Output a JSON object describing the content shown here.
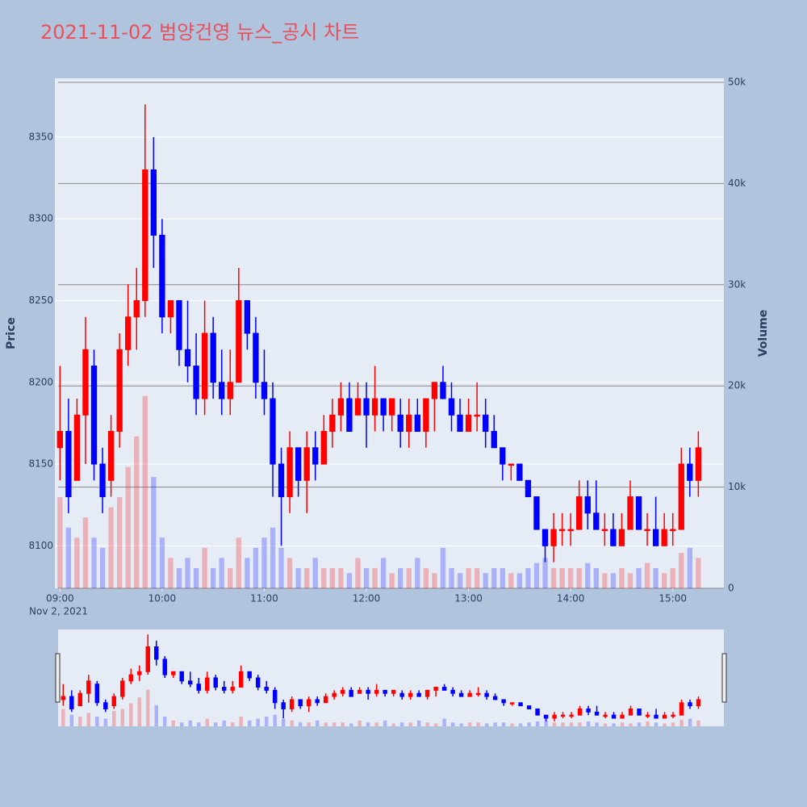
{
  "chart_data": {
    "type": "candlestick",
    "title": "2021-11-02 범양건영 뉴스_공시 차트",
    "y_title": "Price",
    "y2_title": "Volume",
    "x_date_label": "Nov 2, 2021",
    "x": [
      "09:00",
      "09:05",
      "09:10",
      "09:15",
      "09:20",
      "09:25",
      "09:30",
      "09:35",
      "09:40",
      "09:45",
      "09:50",
      "09:55",
      "10:00",
      "10:05",
      "10:10",
      "10:15",
      "10:20",
      "10:25",
      "10:30",
      "10:35",
      "10:40",
      "10:45",
      "10:50",
      "10:55",
      "11:00",
      "11:05",
      "11:10",
      "11:15",
      "11:20",
      "11:25",
      "11:30",
      "11:35",
      "11:40",
      "11:45",
      "11:50",
      "11:55",
      "12:00",
      "12:05",
      "12:10",
      "12:15",
      "12:20",
      "12:25",
      "12:30",
      "12:35",
      "12:40",
      "12:45",
      "12:50",
      "12:55",
      "13:00",
      "13:05",
      "13:10",
      "13:15",
      "13:20",
      "13:25",
      "13:30",
      "13:35",
      "13:40",
      "13:45",
      "13:50",
      "13:55",
      "14:00",
      "14:05",
      "14:10",
      "14:15",
      "14:20",
      "14:25",
      "14:30",
      "14:35",
      "14:40",
      "14:45",
      "14:50",
      "14:55",
      "15:00",
      "15:05",
      "15:10",
      "15:15"
    ],
    "open": [
      8160,
      8170,
      8140,
      8180,
      8210,
      8150,
      8140,
      8170,
      8220,
      8240,
      8250,
      8330,
      8290,
      8240,
      8250,
      8220,
      8210,
      8190,
      8230,
      8200,
      8190,
      8200,
      8250,
      8230,
      8200,
      8190,
      8150,
      8130,
      8160,
      8140,
      8160,
      8150,
      8170,
      8180,
      8190,
      8180,
      8190,
      8180,
      8190,
      8180,
      8180,
      8170,
      8180,
      8170,
      8190,
      8200,
      8190,
      8180,
      8170,
      8180,
      8180,
      8170,
      8160,
      8150,
      8150,
      8140,
      8130,
      8110,
      8100,
      8110,
      8110,
      8110,
      8130,
      8120,
      8110,
      8110,
      8100,
      8110,
      8130,
      8110,
      8110,
      8100,
      8110,
      8110,
      8150,
      8140
    ],
    "high": [
      8210,
      8190,
      8190,
      8240,
      8220,
      8160,
      8180,
      8230,
      8260,
      8270,
      8370,
      8350,
      8300,
      8250,
      8250,
      8250,
      8230,
      8250,
      8240,
      8220,
      8220,
      8270,
      8250,
      8240,
      8220,
      8200,
      8160,
      8170,
      8160,
      8170,
      8170,
      8180,
      8190,
      8200,
      8200,
      8200,
      8200,
      8210,
      8190,
      8190,
      8190,
      8190,
      8190,
      8190,
      8200,
      8210,
      8200,
      8190,
      8190,
      8200,
      8190,
      8180,
      8160,
      8150,
      8150,
      8140,
      8130,
      8110,
      8120,
      8120,
      8120,
      8140,
      8140,
      8140,
      8120,
      8120,
      8120,
      8140,
      8130,
      8120,
      8130,
      8120,
      8120,
      8160,
      8160,
      8170
    ],
    "low": [
      8140,
      8120,
      8140,
      8150,
      8140,
      8120,
      8130,
      8160,
      8210,
      8220,
      8240,
      8270,
      8230,
      8230,
      8210,
      8200,
      8180,
      8180,
      8190,
      8180,
      8180,
      8200,
      8220,
      8190,
      8180,
      8130,
      8100,
      8120,
      8130,
      8120,
      8140,
      8150,
      8160,
      8170,
      8170,
      8180,
      8160,
      8170,
      8170,
      8170,
      8160,
      8160,
      8170,
      8160,
      8170,
      8190,
      8170,
      8170,
      8170,
      8170,
      8160,
      8160,
      8140,
      8140,
      8140,
      8130,
      8110,
      8090,
      8090,
      8100,
      8100,
      8110,
      8110,
      8110,
      8100,
      8100,
      8100,
      8110,
      8110,
      8100,
      8100,
      8100,
      8100,
      8110,
      8130,
      8130
    ],
    "close": [
      8170,
      8130,
      8180,
      8220,
      8150,
      8130,
      8170,
      8220,
      8240,
      8250,
      8330,
      8290,
      8240,
      8250,
      8220,
      8210,
      8190,
      8230,
      8200,
      8190,
      8200,
      8250,
      8230,
      8200,
      8190,
      8150,
      8130,
      8160,
      8140,
      8160,
      8150,
      8170,
      8180,
      8190,
      8170,
      8190,
      8180,
      8190,
      8180,
      8190,
      8170,
      8180,
      8170,
      8190,
      8200,
      8190,
      8180,
      8170,
      8180,
      8180,
      8170,
      8160,
      8150,
      8150,
      8140,
      8130,
      8110,
      8100,
      8110,
      8110,
      8110,
      8130,
      8120,
      8110,
      8110,
      8100,
      8110,
      8130,
      8110,
      8110,
      8100,
      8110,
      8110,
      8150,
      8140,
      8160
    ],
    "volume": [
      9000,
      6000,
      5000,
      7000,
      5000,
      4000,
      8000,
      9000,
      12000,
      15000,
      19000,
      11000,
      5000,
      3000,
      2000,
      3000,
      2000,
      4000,
      2000,
      3000,
      2000,
      5000,
      3000,
      4000,
      5000,
      6000,
      4000,
      3000,
      2000,
      2000,
      3000,
      2000,
      2000,
      2000,
      1500,
      3000,
      2000,
      2000,
      3000,
      1500,
      2000,
      2000,
      3000,
      2000,
      1500,
      4000,
      2000,
      1500,
      2000,
      2000,
      1500,
      2000,
      2000,
      1500,
      1500,
      2000,
      2500,
      3000,
      2000,
      2000,
      2000,
      2000,
      2500,
      2000,
      1500,
      1500,
      2000,
      1500,
      2000,
      2500,
      2000,
      1500,
      2000,
      3500,
      4000,
      3000
    ],
    "increasing_color": "#ff0000",
    "decreasing_color": "#0000ff",
    "xlim": [
      "08:57",
      "15:30"
    ],
    "xticks": [
      "09:00",
      "10:00",
      "11:00",
      "12:00",
      "13:00",
      "14:00",
      "15:00"
    ],
    "ylim": [
      8074,
      8386
    ],
    "yticks": [
      8100,
      8150,
      8200,
      8250,
      8300,
      8350
    ],
    "y2lim": [
      0,
      50400
    ],
    "y2ticks": [
      0,
      {
        "value": 10000,
        "label": "10k"
      },
      {
        "value": 20000,
        "label": "20k"
      },
      {
        "value": 30000,
        "label": "30k"
      },
      {
        "value": 40000,
        "label": "40k"
      },
      {
        "value": 50000,
        "label": "50k"
      }
    ],
    "rangeslider": true
  }
}
